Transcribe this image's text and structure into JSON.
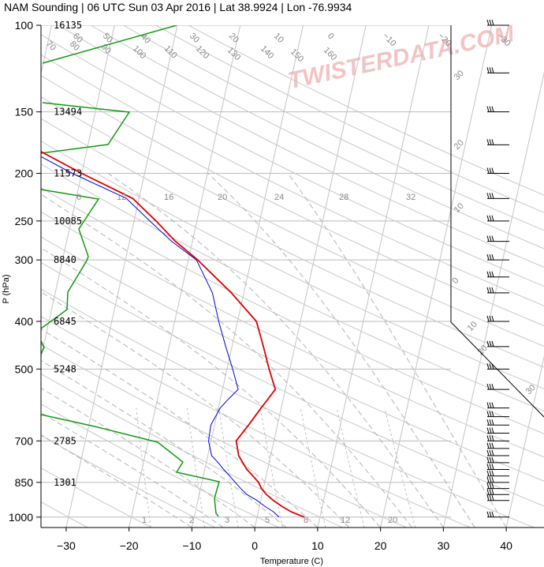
{
  "chart_data": {
    "type": "skew-t log-p sounding",
    "title": "NAM Sounding | 06 UTC Sun 03 Apr 2016 | Lat 38.9924 | Lon -76.9934",
    "xlabel": "Temperature (C)",
    "ylabel": "P (hPa)",
    "watermark": "TWISTERDATA.COM",
    "xlim": [
      -34,
      46
    ],
    "ylim": [
      1050,
      100
    ],
    "x_ticks": [
      "−30",
      "−20",
      "−10",
      "0",
      "10",
      "20",
      "30",
      "40"
    ],
    "x_tick_values": [
      -30,
      -20,
      -10,
      0,
      10,
      20,
      30,
      40
    ],
    "pressure_ticks": [
      "100",
      "150",
      "200",
      "250",
      "300",
      "400",
      "500",
      "700",
      "850",
      "1000"
    ],
    "pressure_tick_values": [
      100,
      150,
      200,
      250,
      300,
      400,
      500,
      700,
      850,
      1000
    ],
    "heights": [
      {
        "p": 100,
        "label": "16135"
      },
      {
        "p": 150,
        "label": "13494"
      },
      {
        "p": 200,
        "label": "11573"
      },
      {
        "p": 250,
        "label": "10085"
      },
      {
        "p": 300,
        "label": "8840"
      },
      {
        "p": 400,
        "label": "6845"
      },
      {
        "p": 500,
        "label": "5248"
      },
      {
        "p": 700,
        "label": "2785"
      },
      {
        "p": 850,
        "label": "1301"
      }
    ],
    "isotherm_labels": [
      "−30",
      "−20",
      "−10",
      "0",
      "10",
      "20",
      "30",
      "40",
      "50",
      "60",
      "70",
      "80",
      "90",
      "100",
      "110",
      "120",
      "130",
      "140",
      "150",
      "160"
    ],
    "mixing_ratio_labels": [
      "1",
      "2",
      "3",
      "5",
      "8",
      "12",
      "20",
      "6",
      "12",
      "16",
      "20",
      "24",
      "28",
      "32"
    ],
    "wind_panel_labels": [
      "30",
      "20",
      "10",
      "0",
      "10",
      "20",
      "30"
    ],
    "temperature": {
      "name": "Temperature",
      "color": "#dd0000",
      "points": [
        [
          1000,
          7.5
        ],
        [
          975,
          5.2
        ],
        [
          950,
          3.5
        ],
        [
          925,
          2.0
        ],
        [
          900,
          0.7
        ],
        [
          875,
          -0.3
        ],
        [
          850,
          -1.0
        ],
        [
          825,
          -2.1
        ],
        [
          800,
          -3.3
        ],
        [
          775,
          -4.2
        ],
        [
          750,
          -5.1
        ],
        [
          700,
          -6.0
        ],
        [
          650,
          -4.6
        ],
        [
          600,
          -3.2
        ],
        [
          575,
          -2.4
        ],
        [
          550,
          -1.6
        ],
        [
          500,
          -3.3
        ],
        [
          450,
          -5.0
        ],
        [
          400,
          -7.0
        ],
        [
          350,
          -12.0
        ],
        [
          300,
          -18.5
        ],
        [
          275,
          -22.7
        ],
        [
          250,
          -26.5
        ],
        [
          225,
          -31.0
        ],
        [
          200,
          -40.0
        ],
        [
          175,
          -49.5
        ],
        [
          150,
          -56.0
        ],
        [
          125,
          -61.5
        ],
        [
          100,
          -67.0
        ]
      ]
    },
    "dewpoint": {
      "name": "Dewpoint",
      "color": "#0000dd",
      "points": [
        [
          1000,
          3.5
        ],
        [
          975,
          2.4
        ],
        [
          950,
          0.8
        ],
        [
          925,
          -0.6
        ],
        [
          900,
          -2.4
        ],
        [
          875,
          -3.6
        ],
        [
          850,
          -4.7
        ],
        [
          825,
          -5.8
        ],
        [
          800,
          -7.0
        ],
        [
          775,
          -8.1
        ],
        [
          750,
          -9.4
        ],
        [
          700,
          -10.4
        ],
        [
          650,
          -10.6
        ],
        [
          600,
          -9.7
        ],
        [
          575,
          -8.7
        ],
        [
          550,
          -7.5
        ],
        [
          500,
          -9.1
        ],
        [
          450,
          -11.0
        ],
        [
          400,
          -13.0
        ],
        [
          350,
          -15.0
        ],
        [
          300,
          -18.7
        ],
        [
          275,
          -23.3
        ],
        [
          250,
          -27.5
        ],
        [
          225,
          -32.0
        ],
        [
          200,
          -41.5
        ],
        [
          175,
          -51.0
        ],
        [
          150,
          -58.0
        ],
        [
          125,
          -64.0
        ],
        [
          100,
          -68.5
        ]
      ]
    },
    "wind_levels_hpa": [
      1000,
      925,
      900,
      875,
      850,
      825,
      800,
      775,
      750,
      725,
      700,
      675,
      650,
      625,
      600,
      550,
      500,
      450,
      400,
      350,
      325,
      300,
      275,
      250,
      225,
      200,
      175,
      150,
      125,
      100
    ]
  }
}
